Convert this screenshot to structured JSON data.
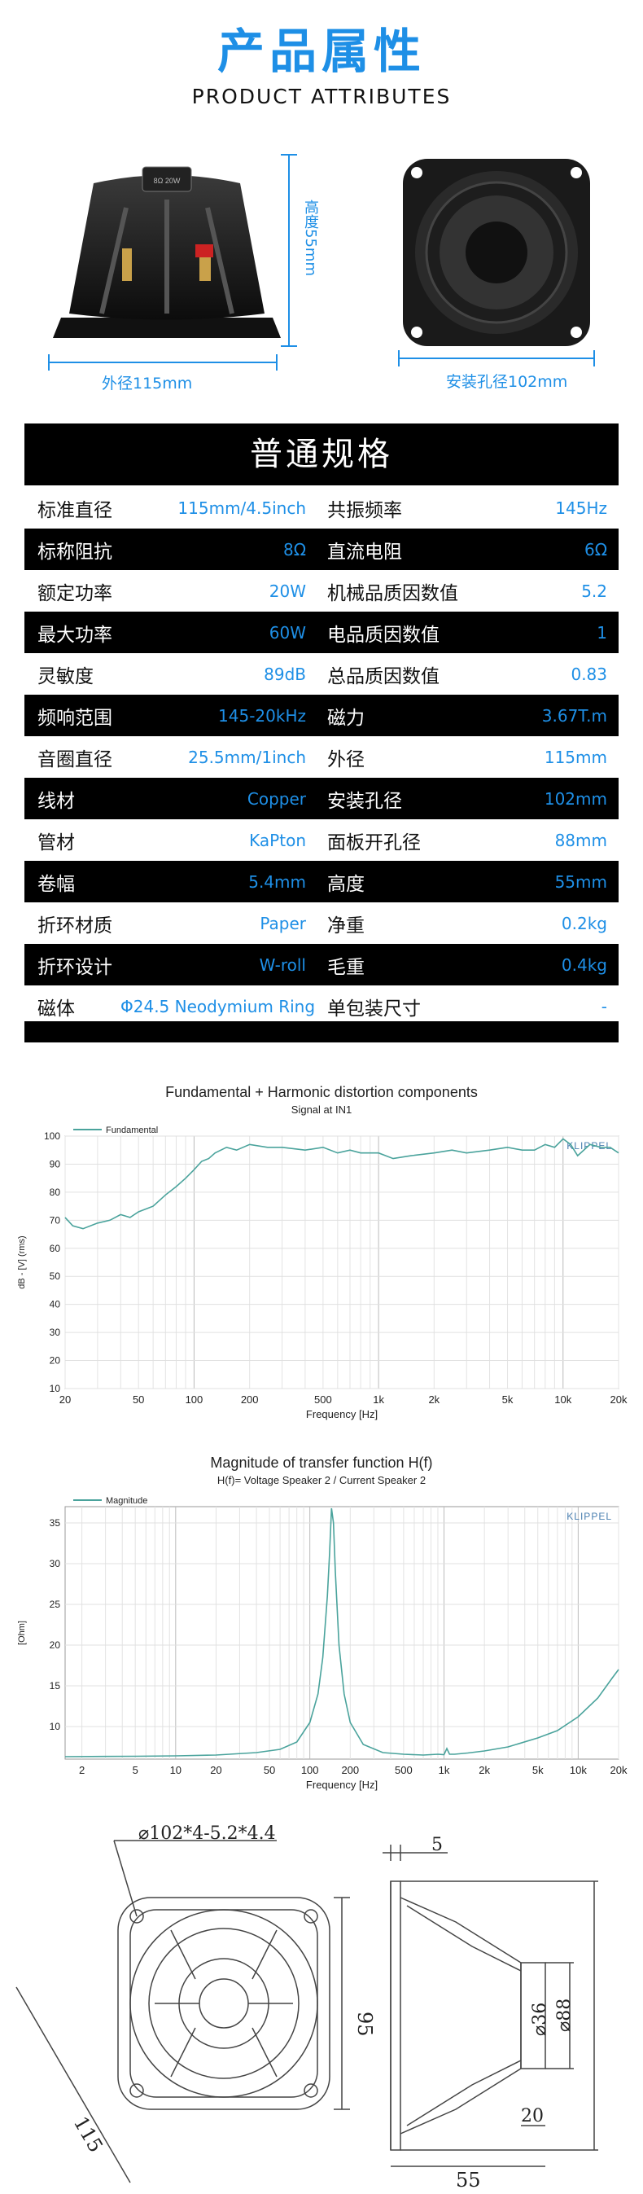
{
  "header": {
    "title_cn": "产品属性",
    "title_en": "PRODUCT ATTRIBUTES"
  },
  "photos": {
    "left_caption": "外径115mm",
    "height_caption": "高度55mm",
    "right_caption": "安装孔径102mm",
    "magnet_label": "8Ω 20W"
  },
  "spec": {
    "title": "普通规格",
    "rows": [
      {
        "k1": "标准直径",
        "v1": "115mm/4.5inch",
        "k2": "共振频率",
        "v2": "145Hz",
        "dark": false
      },
      {
        "k1": "标称阻抗",
        "v1": "8Ω",
        "k2": "直流电阻",
        "v2": "6Ω",
        "dark": true
      },
      {
        "k1": "额定功率",
        "v1": "20W",
        "k2": "机械品质因数值",
        "v2": "5.2",
        "dark": false
      },
      {
        "k1": "最大功率",
        "v1": "60W",
        "k2": "电品质因数值",
        "v2": "1",
        "dark": true
      },
      {
        "k1": "灵敏度",
        "v1": "89dB",
        "k2": "总品质因数值",
        "v2": "0.83",
        "dark": false
      },
      {
        "k1": "频响范围",
        "v1": "145-20kHz",
        "k2": "磁力",
        "v2": "3.67T.m",
        "dark": true
      },
      {
        "k1": "音圈直径",
        "v1": "25.5mm/1inch",
        "k2": "外径",
        "v2": "115mm",
        "dark": false
      },
      {
        "k1": "线材",
        "v1": "Copper",
        "k2": "安装孔径",
        "v2": "102mm",
        "dark": true
      },
      {
        "k1": "管材",
        "v1": "KaPton",
        "k2": "面板开孔径",
        "v2": "88mm",
        "dark": false
      },
      {
        "k1": "卷幅",
        "v1": "5.4mm",
        "k2": "高度",
        "v2": "55mm",
        "dark": true
      },
      {
        "k1": "折环材质",
        "v1": "Paper",
        "k2": "净重",
        "v2": "0.2kg",
        "dark": false
      },
      {
        "k1": "折环设计",
        "v1": "W-roll",
        "k2": "毛重",
        "v2": "0.4kg",
        "dark": true
      },
      {
        "k1": "磁体",
        "v1": "Φ24.5 Neodymium Ring",
        "k2": "单包装尺寸",
        "v2": "-",
        "dark": false
      }
    ]
  },
  "chart_data": [
    {
      "type": "line",
      "title": "Fundamental + Harmonic distortion components",
      "subtitle": "Signal at IN1",
      "xlabel": "Frequency [Hz]",
      "ylabel": "dB - [V] (rms)",
      "watermark": "KLIPPEL",
      "x_scale": "log",
      "xlim": [
        20,
        20000
      ],
      "ylim": [
        10,
        100
      ],
      "x_ticks": [
        "20",
        "50",
        "100",
        "200",
        "500",
        "1k",
        "2k",
        "5k",
        "10k",
        "20k"
      ],
      "y_ticks": [
        "10",
        "20",
        "30",
        "40",
        "50",
        "60",
        "70",
        "80",
        "90",
        "100"
      ],
      "series": [
        {
          "name": "Fundamental",
          "color": "#4aa39c",
          "x": [
            20,
            22,
            25,
            30,
            35,
            40,
            45,
            50,
            60,
            70,
            80,
            90,
            100,
            110,
            120,
            130,
            150,
            170,
            200,
            250,
            300,
            400,
            500,
            600,
            700,
            800,
            1000,
            1200,
            1500,
            2000,
            2500,
            3000,
            4000,
            5000,
            6000,
            7000,
            8000,
            9000,
            10000,
            11000,
            12000,
            14000,
            16000,
            18000,
            20000
          ],
          "y": [
            71,
            68,
            67,
            69,
            70,
            72,
            71,
            73,
            75,
            79,
            82,
            85,
            88,
            91,
            92,
            94,
            96,
            95,
            97,
            96,
            96,
            95,
            96,
            94,
            95,
            94,
            94,
            92,
            93,
            94,
            95,
            94,
            95,
            96,
            95,
            95,
            97,
            96,
            99,
            97,
            93,
            97,
            96,
            96,
            94
          ]
        }
      ]
    },
    {
      "type": "line",
      "title": "Magnitude of transfer function H(f)",
      "subtitle": "H(f)= Voltage Speaker 2 / Current Speaker 2",
      "xlabel": "Frequency [Hz]",
      "ylabel": "[Ohm]",
      "watermark": "KLIPPEL",
      "x_scale": "log",
      "xlim": [
        1.5,
        20000
      ],
      "ylim": [
        6,
        37
      ],
      "x_ticks": [
        "2",
        "5",
        "10",
        "20",
        "50",
        "100",
        "200",
        "500",
        "1k",
        "2k",
        "5k",
        "10k",
        "20k"
      ],
      "y_ticks": [
        "10",
        "15",
        "20",
        "25",
        "30",
        "35"
      ],
      "series": [
        {
          "name": "Magnitude",
          "color": "#4aa39c",
          "x": [
            1.5,
            5,
            10,
            20,
            40,
            60,
            80,
            100,
            115,
            125,
            135,
            140,
            145,
            150,
            155,
            165,
            180,
            200,
            250,
            350,
            500,
            700,
            900,
            1000,
            1050,
            1100,
            1200,
            1500,
            2000,
            3000,
            5000,
            7000,
            10000,
            14000,
            18000,
            20000
          ],
          "y": [
            6.3,
            6.35,
            6.4,
            6.5,
            6.8,
            7.2,
            8.1,
            10.5,
            14,
            18.5,
            26,
            31,
            36.8,
            35,
            29,
            20,
            14,
            10.5,
            7.8,
            6.8,
            6.6,
            6.5,
            6.6,
            6.55,
            7.3,
            6.6,
            6.6,
            6.75,
            7,
            7.5,
            8.6,
            9.5,
            11.2,
            13.5,
            16,
            17
          ]
        }
      ]
    }
  ],
  "drawing": {
    "front_hole": "⌀102*4-5.2*4.4",
    "front_width": "95",
    "front_diag": "115",
    "side_thick": "5",
    "side_d36": "⌀36",
    "side_d88": "⌀88",
    "side_20": "20",
    "side_55": "55"
  }
}
